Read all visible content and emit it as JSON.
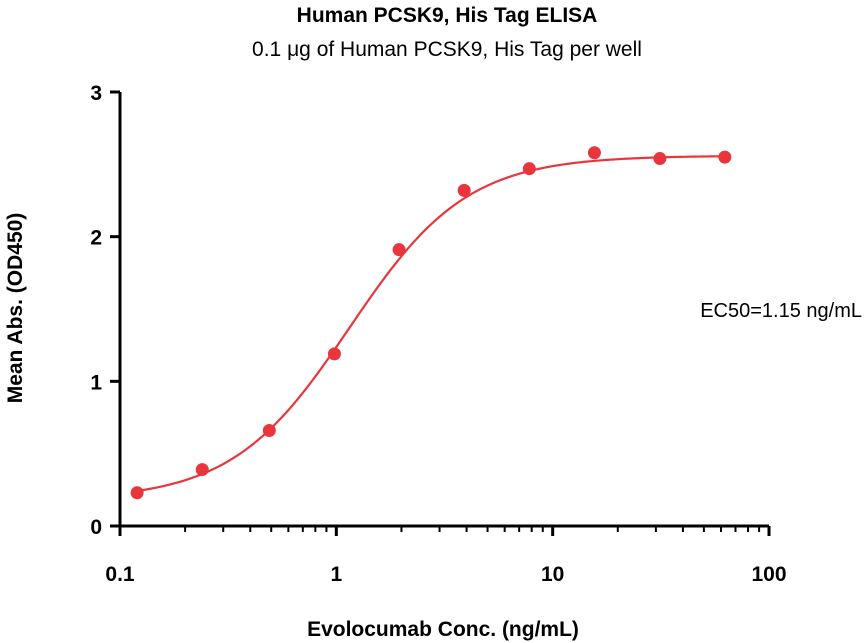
{
  "chart_data": {
    "type": "scatter",
    "title": "Human PCSK9, His Tag ELISA",
    "subtitle": "0.1 μg of Human PCSK9, His Tag per well",
    "xlabel": "Evolocumab Conc. (ng/mL)",
    "ylabel": "Mean Abs. (OD450)",
    "xscale": "log",
    "xlim": [
      0.1,
      100
    ],
    "ylim": [
      0,
      3
    ],
    "xticks": [
      {
        "value": 0.1,
        "label": "0.1"
      },
      {
        "value": 1,
        "label": "1"
      },
      {
        "value": 10,
        "label": "10"
      },
      {
        "value": 100,
        "label": "100"
      }
    ],
    "yticks": [
      {
        "value": 0,
        "label": "0"
      },
      {
        "value": 1,
        "label": "1"
      },
      {
        "value": 2,
        "label": "2"
      },
      {
        "value": 3,
        "label": "3"
      }
    ],
    "grid": false,
    "series": [
      {
        "color": "#e8363c",
        "points": [
          {
            "x": 0.12,
            "y": 0.23
          },
          {
            "x": 0.24,
            "y": 0.39
          },
          {
            "x": 0.49,
            "y": 0.66
          },
          {
            "x": 0.98,
            "y": 1.19
          },
          {
            "x": 1.95,
            "y": 1.91
          },
          {
            "x": 3.9,
            "y": 2.32
          },
          {
            "x": 7.8,
            "y": 2.47
          },
          {
            "x": 15.6,
            "y": 2.58
          },
          {
            "x": 31.3,
            "y": 2.54
          },
          {
            "x": 62.5,
            "y": 2.55
          }
        ],
        "fit": {
          "model": "4PL",
          "bottom": 0.18,
          "top": 2.56,
          "ec50": 1.15,
          "hill": 1.6
        }
      }
    ],
    "annotations": [
      {
        "text": "EC50=1.15 ng/mL"
      }
    ]
  }
}
